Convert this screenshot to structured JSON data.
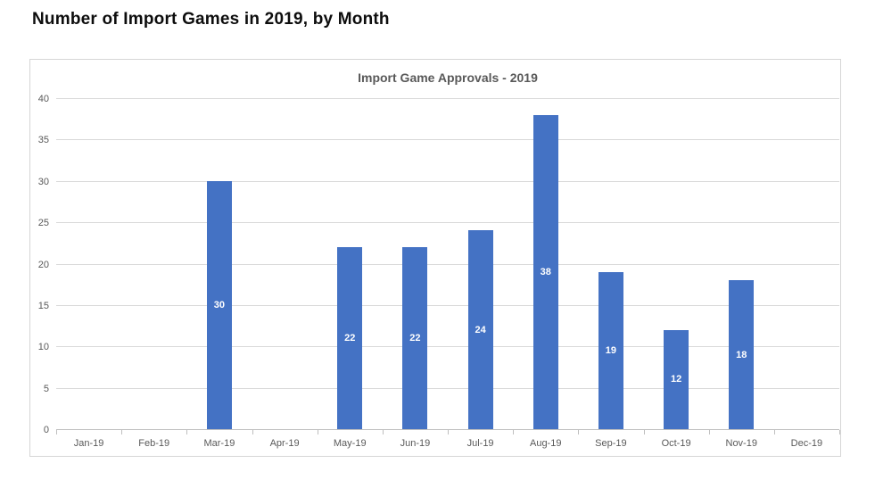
{
  "page": {
    "title": "Number of Import Games in 2019, by Month"
  },
  "chart_data": {
    "type": "bar",
    "title": "Import Game Approvals - 2019",
    "categories": [
      "Jan-19",
      "Feb-19",
      "Mar-19",
      "Apr-19",
      "May-19",
      "Jun-19",
      "Jul-19",
      "Aug-19",
      "Sep-19",
      "Oct-19",
      "Nov-19",
      "Dec-19"
    ],
    "values": [
      0,
      0,
      30,
      0,
      22,
      22,
      24,
      38,
      19,
      12,
      18,
      0
    ],
    "xlabel": "",
    "ylabel": "",
    "ylim": [
      0,
      40
    ],
    "ytick_step": 5,
    "grid": true,
    "legend": "none",
    "bar_color": "#4472c4",
    "data_label_color": "#ffffff",
    "data_labels": "centered inside bars, hidden for zero values"
  }
}
